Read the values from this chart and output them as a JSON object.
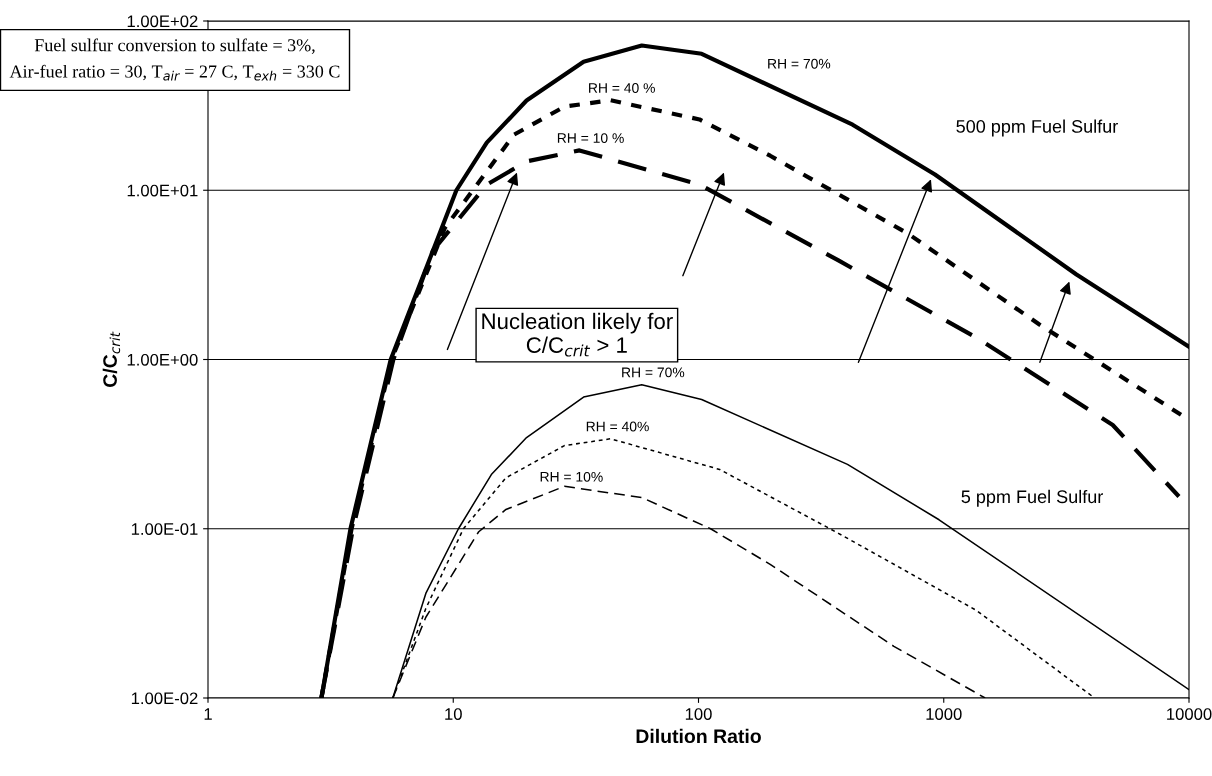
{
  "chart_data": {
    "type": "line",
    "xlabel": "Dilution Ratio",
    "ylabel": "C/C$_{crit}$",
    "log": "xy",
    "grid": "y",
    "legend": false,
    "marker": "none",
    "xlim": [
      1,
      10000
    ],
    "xticks": [
      1,
      10,
      100,
      1000,
      10000
    ],
    "ylim": [
      0.01,
      100
    ],
    "yticks": [
      {
        "value": 0.01,
        "label": "1.00E-02"
      },
      {
        "value": 0.1,
        "label": "1.00E-01"
      },
      {
        "value": 1,
        "label": "1.00E+00"
      },
      {
        "value": 10,
        "label": "1.00E+01"
      },
      {
        "value": 100,
        "label": "1.00E+02"
      }
    ],
    "series": [
      {
        "name": "RH = 70%",
        "color": "#000000",
        "line_style": "solid",
        "x": [
          2.9,
          3.81,
          5.56,
          10.3,
          13.7,
          19.9,
          34,
          58.7,
          103,
          425,
          921,
          3477,
          10000
        ],
        "values": [
          0.01,
          0.1,
          1,
          10,
          19.1,
          33.9,
          57.5,
          71.6,
          64,
          24.4,
          12.4,
          3.18,
          1.19
        ]
      },
      {
        "name": "RH = 40 %",
        "color": "#000000",
        "line_style": "dotted",
        "x": [
          2.9,
          3.85,
          5.6,
          9.25,
          17.7,
          28.4,
          43.8,
          101,
          196,
          714,
          2455,
          10000
        ],
        "values": [
          0.01,
          0.1,
          1,
          6.0,
          21.3,
          31.2,
          34,
          26.2,
          16.0,
          5.55,
          1.61,
          0.44
        ]
      },
      {
        "name": "RH = 10 %",
        "color": "#000000",
        "line_style": "dashed",
        "x": [
          2.9,
          3.9,
          5.7,
          8.26,
          13.7,
          19.9,
          32.7,
          101,
          372,
          1355,
          4887,
          9100
        ],
        "values": [
          0.01,
          0.1,
          1,
          4.4,
          10.8,
          14.8,
          17.2,
          10.8,
          3.85,
          1.35,
          0.41,
          0.155
        ]
      },
      {
        "name": "RH = 70%",
        "color": "#000000",
        "line_style": "solid",
        "x": [
          5.67,
          7.73,
          10.5,
          14.3,
          19.9,
          34,
          58.7,
          103,
          405,
          957,
          10000
        ],
        "values": [
          0.01,
          0.0415,
          0.1,
          0.209,
          0.346,
          0.6,
          0.71,
          0.58,
          0.24,
          0.113,
          0.0112
        ]
      },
      {
        "name": "RH = 40%",
        "color": "#000000",
        "line_style": "dotted",
        "x": [
          5.67,
          7.73,
          11.0,
          16.4,
          28.4,
          43.8,
          122,
          372,
          1355,
          4120
        ],
        "values": [
          0.01,
          0.0338,
          0.1,
          0.2,
          0.31,
          0.34,
          0.224,
          0.094,
          0.033,
          0.01
        ]
      },
      {
        "name": "RH = 10%",
        "color": "#000000",
        "line_style": "dashed",
        "x": [
          5.67,
          7.73,
          12.7,
          16.4,
          28.4,
          58.7,
          112,
          196,
          626,
          1475
        ],
        "values": [
          0.01,
          0.03,
          0.096,
          0.13,
          0.178,
          0.153,
          0.1,
          0.0616,
          0.0202,
          0.01
        ]
      }
    ],
    "annotations": [
      "500 ppm Fuel Sulfur",
      "5 ppm Fuel Sulfur",
      "Fuel sulfur conversion to sulfate = 3%,\nAir-fuel ratio = 30, T$_{air}$ = 27 C, T$_{exh}$ = 330 C",
      "Nucleation likely for\nC/C$_{crit}$ > 1"
    ]
  }
}
